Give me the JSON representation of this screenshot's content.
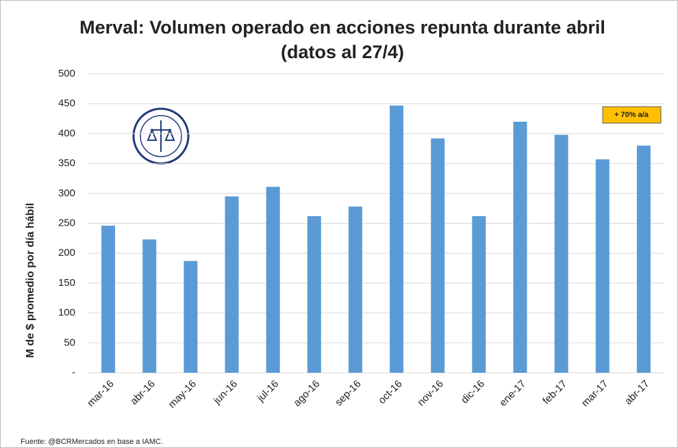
{
  "chart_data": {
    "type": "bar",
    "title": "Merval: Volumen operado en acciones repunta durante abril",
    "subtitle": "(datos al 27/4)",
    "y_label": "M de $ promedio por día hábil",
    "annotation": "+ 70% a/a",
    "source": "Fuente: @BCRMercados en base a IAMC.",
    "categories": [
      "mar-16",
      "abr-16",
      "may-16",
      "jun-16",
      "jul-16",
      "ago-16",
      "sep-16",
      "oct-16",
      "nov-16",
      "dic-16",
      "ene-17",
      "feb-17",
      "mar-17",
      "abr-17"
    ],
    "values": [
      246,
      223,
      187,
      295,
      311,
      262,
      278,
      447,
      392,
      262,
      420,
      398,
      357,
      380
    ],
    "color": "#5b9bd5",
    "ylim": [
      0,
      500
    ],
    "yticks": [
      {
        "value": 0,
        "label": "-"
      },
      50,
      100,
      150,
      200,
      250,
      300,
      350,
      400,
      450,
      500
    ],
    "grid": true
  }
}
